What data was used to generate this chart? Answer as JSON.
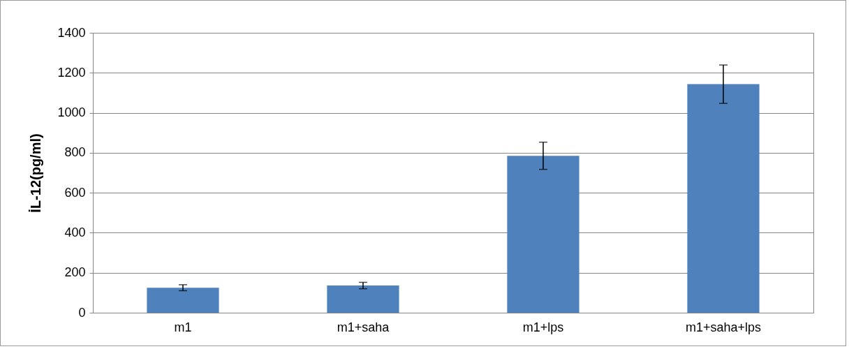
{
  "chart_data": {
    "type": "bar",
    "ylabel": "İL-12(pg/ml)",
    "categories": [
      "m1",
      "m1+saha",
      "m1+lps",
      "m1+saha+lps"
    ],
    "series": [
      {
        "color": "#4f81bd",
        "values": [
          125,
          136,
          785,
          1143
        ],
        "errors": [
          15,
          16,
          68,
          96
        ]
      }
    ],
    "ylim": [
      0,
      1400
    ],
    "yticks": [
      0,
      200,
      400,
      600,
      800,
      1000,
      1200,
      1400
    ],
    "grid": "y",
    "legend": false
  }
}
